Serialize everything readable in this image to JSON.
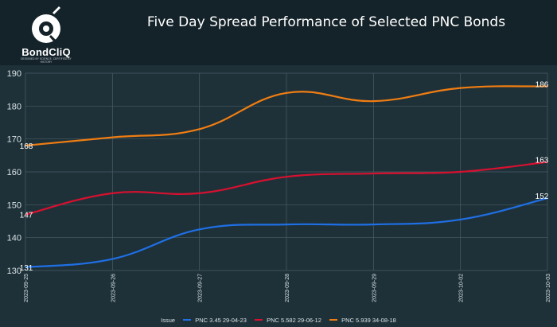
{
  "header": {
    "logo_text": "BondCliQ",
    "logo_tagline": "DESIGNED BY SCIENCE, CERTIFIED BY HISTORY",
    "title": "Five Day Spread Performance of Selected PNC Bonds"
  },
  "colors": {
    "background": "#1e3139",
    "header": "#142229",
    "series": [
      "#1f6fe5",
      "#d8102f",
      "#f07d12"
    ]
  },
  "legend": {
    "title": "Issue",
    "placement": "bottom-center"
  },
  "chart_data": {
    "type": "line",
    "categories": [
      "2023-09-25",
      "2023-09-26",
      "2023-09-27",
      "2023-09-28",
      "2023-09-29",
      "2023-10-02",
      "2023-10-03"
    ],
    "series": [
      {
        "name": "PNC 3.45 29-04-23",
        "values": [
          131,
          133.5,
          142.5,
          144,
          144,
          145.5,
          152
        ],
        "color": "#1f6fe5",
        "end_labels": {
          "first": "131",
          "last": "152"
        }
      },
      {
        "name": "PNC 5.582 29-06-12",
        "values": [
          147,
          153.5,
          153.5,
          158.5,
          159.5,
          160,
          163
        ],
        "color": "#d8102f",
        "end_labels": {
          "first": "147",
          "last": "163"
        }
      },
      {
        "name": "PNC 5.939 34-08-18",
        "values": [
          168,
          170.5,
          173,
          184,
          181.5,
          185.5,
          186
        ],
        "color": "#f07d12",
        "end_labels": {
          "first": "168",
          "last": "186"
        }
      }
    ],
    "yticks": [
      130,
      140,
      150,
      160,
      170,
      180,
      190
    ],
    "ylim": [
      130,
      190
    ],
    "grid": true,
    "legend": "bottom-center"
  }
}
